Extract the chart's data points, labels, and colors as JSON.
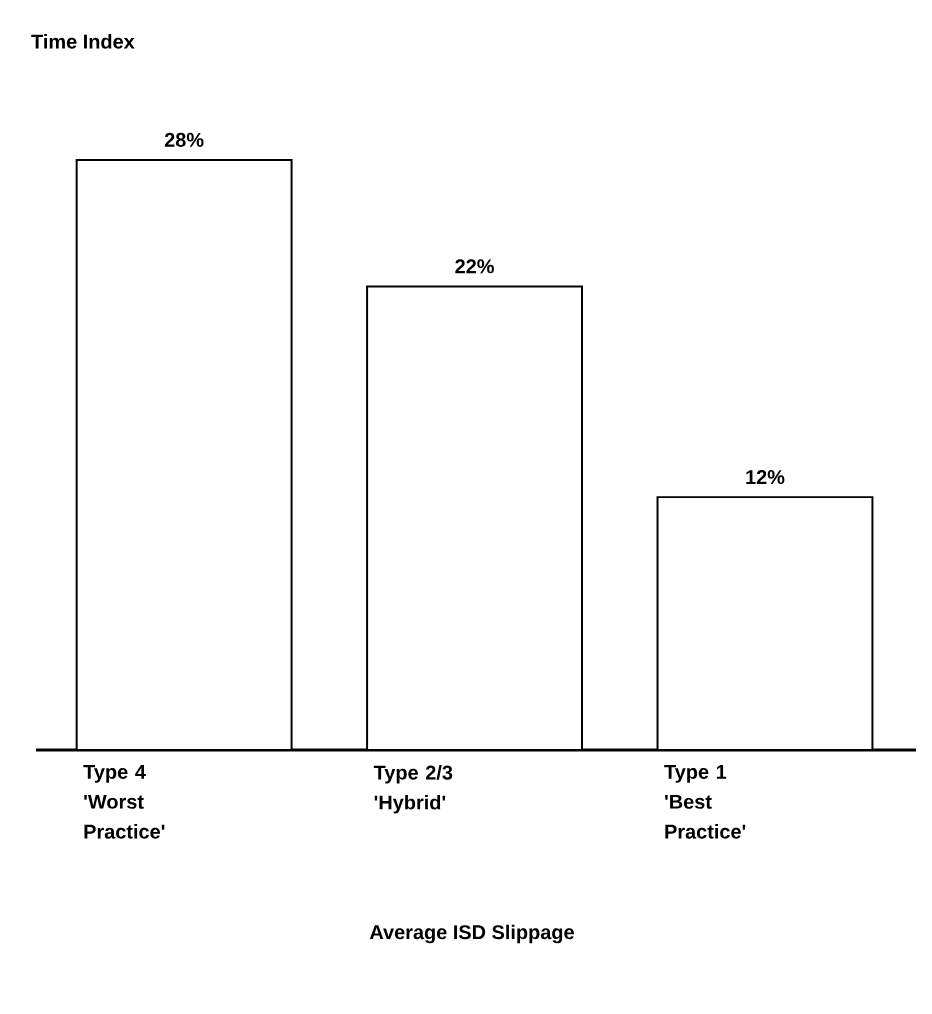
{
  "chart_data": {
    "type": "bar",
    "annotations": [
      "Time Index"
    ],
    "xlabel": "Average ISD Slippage",
    "categories": [
      "Type 4 'Worst Practice'",
      "Type 2/3 'Hybrid'",
      "Type 1 'Best Practice'"
    ],
    "values": [
      28,
      22,
      12
    ],
    "value_labels": [
      "28%",
      "22%",
      "12%"
    ],
    "color": "#000000",
    "grid": false
  }
}
